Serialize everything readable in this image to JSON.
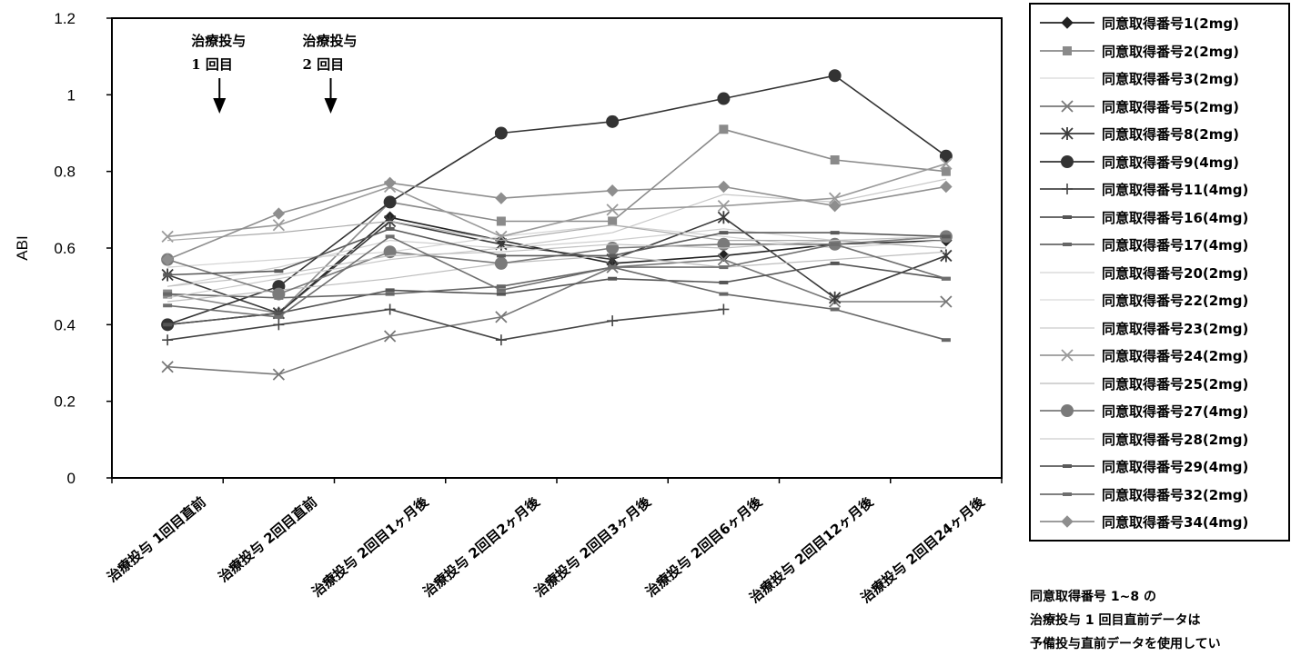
{
  "chart_data": {
    "type": "line",
    "ylabel": "ABI",
    "ylim": [
      0,
      1.2
    ],
    "yticks": [
      "0",
      "0.2",
      "0.4",
      "0.6",
      "0.8",
      "1",
      "1.2"
    ],
    "yticks_values": [
      0,
      0.2,
      0.4,
      0.6,
      0.8,
      1.0,
      1.2
    ],
    "grid": false,
    "legend_position": "right",
    "categories": [
      "治療投与 1回目直前",
      "治療投与 2回目直前",
      "治療投与 2回目1ヶ月後",
      "治療投与 2回目2ヶ月後",
      "治療投与 2回目3ヶ月後",
      "治療投与 2回目6ヶ月後",
      "治療投与 2回目12ヶ月後",
      "治療投与 2回目24ヶ月後"
    ],
    "annotations": [
      {
        "line1": "治療投与",
        "line2": "1 回目",
        "at": 0.5
      },
      {
        "line1": "治療投与",
        "line2": "2 回目",
        "at": 1.5
      }
    ],
    "series": [
      {
        "name": "同意取得番号1(2mg)",
        "color": "#222222",
        "marker": "diamond",
        "values": [
          0.4,
          0.43,
          0.68,
          0.62,
          0.56,
          0.58,
          0.61,
          0.62
        ]
      },
      {
        "name": "同意取得番号2(2mg)",
        "color": "#8a8a8a",
        "marker": "square",
        "values": [
          0.48,
          0.43,
          0.72,
          0.67,
          0.67,
          0.91,
          0.83,
          0.8
        ]
      },
      {
        "name": "同意取得番号3(2mg)",
        "color": "#cfcfcf",
        "marker": "none",
        "values": [
          0.5,
          0.55,
          0.62,
          0.6,
          0.62,
          0.65,
          0.62,
          0.6
        ]
      },
      {
        "name": "同意取得番号5(2mg)",
        "color": "#777777",
        "marker": "x",
        "values": [
          0.29,
          0.27,
          0.37,
          0.42,
          0.55,
          0.57,
          0.46,
          0.46
        ]
      },
      {
        "name": "同意取得番号8(2mg)",
        "color": "#3a3a3a",
        "marker": "star",
        "values": [
          0.53,
          0.43,
          0.67,
          0.61,
          0.57,
          0.68,
          0.47,
          0.58
        ]
      },
      {
        "name": "同意取得番号9(4mg)",
        "color": "#333333",
        "marker": "circle",
        "values": [
          0.4,
          0.5,
          0.72,
          0.9,
          0.93,
          0.99,
          1.05,
          0.84
        ]
      },
      {
        "name": "同意取得番号11(4mg)",
        "color": "#444444",
        "marker": "plus",
        "values": [
          0.36,
          0.4,
          0.44,
          0.36,
          0.41,
          0.44,
          null,
          null
        ]
      },
      {
        "name": "同意取得番号16(4mg)",
        "color": "#555555",
        "marker": "dash",
        "values": [
          0.4,
          0.43,
          0.49,
          0.48,
          0.52,
          0.51,
          0.56,
          0.52
        ]
      },
      {
        "name": "同意取得番号17(4mg)",
        "color": "#666666",
        "marker": "dash",
        "values": [
          0.48,
          0.47,
          0.48,
          0.5,
          0.55,
          0.48,
          0.44,
          0.36
        ]
      },
      {
        "name": "同意取得番号20(2mg)",
        "color": "#c8c8c8",
        "marker": "none",
        "values": [
          0.47,
          0.52,
          0.57,
          0.6,
          0.64,
          0.74,
          0.72,
          0.78
        ]
      },
      {
        "name": "同意取得番号22(2mg)",
        "color": "#d2d2d2",
        "marker": "none",
        "values": [
          0.55,
          0.57,
          0.59,
          0.63,
          0.66,
          0.63,
          0.6,
          0.62
        ]
      },
      {
        "name": "同意取得番号23(2mg)",
        "color": "#bdbdbd",
        "marker": "none",
        "values": [
          0.46,
          0.49,
          0.52,
          0.56,
          0.58,
          0.55,
          0.57,
          0.59
        ]
      },
      {
        "name": "同意取得番号24(2mg)",
        "color": "#9a9a9a",
        "marker": "x",
        "values": [
          0.63,
          0.66,
          0.76,
          0.63,
          0.7,
          0.71,
          0.73,
          0.82
        ]
      },
      {
        "name": "同意取得番号25(2mg)",
        "color": "#aaaaaa",
        "marker": "none",
        "values": [
          0.62,
          0.64,
          0.67,
          0.62,
          0.66,
          0.62,
          0.62,
          0.6
        ]
      },
      {
        "name": "同意取得番号27(4mg)",
        "color": "#7a7a7a",
        "marker": "circle",
        "values": [
          0.57,
          0.48,
          0.59,
          0.56,
          0.6,
          0.61,
          0.61,
          0.63
        ]
      },
      {
        "name": "同意取得番号28(2mg)",
        "color": "#c0c0c0",
        "marker": "none",
        "values": [
          0.5,
          0.53,
          0.58,
          0.59,
          0.61,
          0.6,
          0.62,
          0.63
        ]
      },
      {
        "name": "同意取得番号29(4mg)",
        "color": "#5a5a5a",
        "marker": "dash",
        "values": [
          0.53,
          0.54,
          0.65,
          0.58,
          0.58,
          0.64,
          0.64,
          0.63
        ]
      },
      {
        "name": "同意取得番号32(2mg)",
        "color": "#6e6e6e",
        "marker": "dash",
        "values": [
          0.45,
          0.42,
          0.63,
          0.49,
          0.55,
          0.55,
          0.61,
          0.52
        ]
      },
      {
        "name": "同意取得番号34(4mg)",
        "color": "#8e8e8e",
        "marker": "diamond",
        "values": [
          0.57,
          0.69,
          0.77,
          0.73,
          0.75,
          0.76,
          0.71,
          0.76
        ]
      }
    ]
  },
  "note": {
    "line1": "同意取得番号 1~8 の",
    "line2": "治療投与 1 回目直前データは",
    "line3": "予備投与直前データを使用してい"
  }
}
